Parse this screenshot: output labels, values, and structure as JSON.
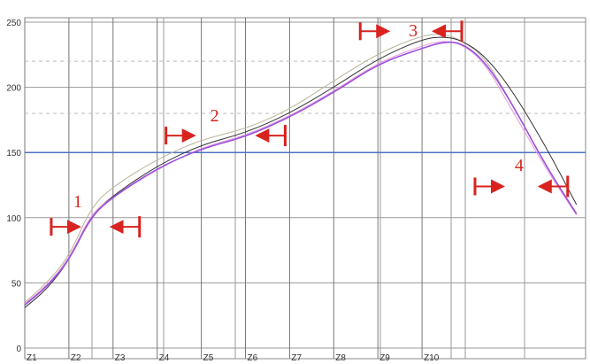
{
  "chart_data": {
    "type": "line",
    "title": "",
    "xlabel": "",
    "ylabel": "",
    "ylim": [
      0,
      250
    ],
    "yticks": [
      0,
      50,
      100,
      150,
      200,
      250
    ],
    "xlim": [
      0,
      12.7
    ],
    "xtick_labels": [
      "Z1",
      "Z2",
      "Z3",
      "Z4",
      "Z5",
      "Z6",
      "Z7",
      "Z8",
      "Z9",
      "Z10"
    ],
    "grid": true,
    "reference_lines": [
      {
        "y": 150,
        "color": "#4a72c4",
        "style": "solid"
      },
      {
        "y": 220,
        "color": "#bbbbbb",
        "style": "dashed"
      },
      {
        "y": 180,
        "color": "#bbbbbb",
        "style": "dashed"
      }
    ],
    "series": [
      {
        "color": "#b8b49a",
        "x": [
          0,
          0.5,
          1,
          1.5,
          2,
          3,
          4,
          5,
          6,
          7,
          8,
          9,
          9.5,
          9.9,
          10.4,
          11,
          11.8,
          12.5
        ],
        "y": [
          35,
          50,
          70,
          108,
          124,
          145,
          160,
          168,
          183,
          205,
          226,
          240,
          241,
          236,
          224,
          190,
          140,
          103
        ]
      },
      {
        "color": "#333333",
        "x": [
          0,
          0.5,
          1,
          1.5,
          2,
          3,
          4,
          5,
          6,
          7,
          8,
          9,
          9.5,
          9.9,
          10.4,
          11,
          11.8,
          12.5
        ],
        "y": [
          31,
          45,
          67,
          102,
          117,
          140,
          156,
          165,
          180,
          200,
          222,
          237,
          239,
          236,
          225,
          200,
          155,
          110
        ]
      },
      {
        "color": "#e49ad8",
        "x": [
          0,
          0.5,
          1,
          1.5,
          2,
          3,
          4,
          5,
          6,
          7,
          8,
          9,
          9.5,
          9.9,
          10.4,
          11,
          11.8,
          12.5
        ],
        "y": [
          34,
          48,
          68,
          103,
          116,
          137,
          154,
          163,
          178,
          197,
          219,
          232,
          236,
          233,
          220,
          185,
          138,
          102
        ]
      },
      {
        "color": "#9b4fe0",
        "x": [
          0,
          0.5,
          1,
          1.5,
          2,
          3,
          4,
          5,
          6,
          7,
          8,
          9,
          9.5,
          9.9,
          10.4,
          11,
          11.8,
          12.5
        ],
        "y": [
          33,
          47,
          67,
          101,
          116,
          138,
          153,
          162,
          177,
          196,
          218,
          230,
          235,
          234,
          221,
          190,
          140,
          103
        ]
      }
    ],
    "annotations": [
      {
        "label": "1",
        "x": 1.2,
        "y": 108,
        "from": 0.6,
        "to": 2.6,
        "at": 93
      },
      {
        "label": "2",
        "x": 4.3,
        "y": 174,
        "from": 3.2,
        "to": 5.9,
        "at": 163
      },
      {
        "label": "3",
        "x": 8.8,
        "y": 239,
        "from": 7.6,
        "to": 9.9,
        "at": 243
      },
      {
        "label": "4",
        "x": 11.2,
        "y": 136,
        "from": 10.2,
        "to": 12.3,
        "at": 124
      }
    ],
    "annotation_color": "#d8231f"
  }
}
